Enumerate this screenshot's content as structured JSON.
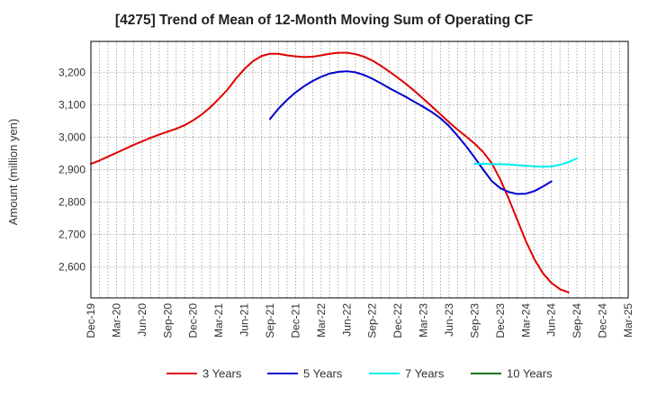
{
  "chart_data": {
    "type": "line",
    "title": "[4275]  Trend of Mean of 12-Month Moving Sum of Operating CF",
    "xlabel": "",
    "ylabel": "Amount (million yen)",
    "ylim": [
      2505,
      3295
    ],
    "yticks": [
      2600,
      2700,
      2800,
      2900,
      3000,
      3100,
      3200
    ],
    "ytick_labels": [
      "2,600",
      "2,700",
      "2,800",
      "2,900",
      "3,000",
      "3,100",
      "3,200"
    ],
    "x_start": "Dec-19",
    "x_months": 63,
    "xtick_labels": [
      "Dec-19",
      "Mar-20",
      "Jun-20",
      "Sep-20",
      "Dec-20",
      "Mar-21",
      "Jun-21",
      "Sep-21",
      "Dec-21",
      "Mar-22",
      "Jun-22",
      "Sep-22",
      "Dec-22",
      "Mar-23",
      "Jun-23",
      "Sep-23",
      "Dec-23",
      "Mar-24",
      "Jun-24",
      "Sep-24",
      "Dec-24",
      "Mar-25"
    ],
    "grid": true,
    "legend_position": "bottom",
    "series": [
      {
        "name": "3 Years",
        "color": "#e00000",
        "start_index": 0,
        "values": [
          2918,
          2928,
          2940,
          2952,
          2964,
          2976,
          2987,
          2998,
          3008,
          3017,
          3026,
          3037,
          3052,
          3070,
          3092,
          3118,
          3146,
          3180,
          3210,
          3234,
          3250,
          3257,
          3257,
          3252,
          3249,
          3247,
          3248,
          3252,
          3257,
          3260,
          3260,
          3256,
          3248,
          3236,
          3220,
          3202,
          3183,
          3163,
          3141,
          3118,
          3094,
          3070,
          3046,
          3023,
          3002,
          2980,
          2954,
          2920,
          2870,
          2810,
          2745,
          2680,
          2624,
          2581,
          2551,
          2532,
          2522
        ]
      },
      {
        "name": "5 Years",
        "color": "#0000cc",
        "start_index": 21,
        "values": [
          3056,
          3088,
          3115,
          3138,
          3157,
          3173,
          3186,
          3196,
          3201,
          3203,
          3200,
          3192,
          3180,
          3166,
          3151,
          3137,
          3123,
          3108,
          3093,
          3077,
          3058,
          3034,
          3004,
          2972,
          2937,
          2900,
          2865,
          2843,
          2831,
          2825,
          2826,
          2834,
          2848,
          2864
        ]
      },
      {
        "name": "7 Years",
        "color": "#00eeee",
        "start_index": 45,
        "values": [
          2918,
          2918,
          2917,
          2917,
          2916,
          2914,
          2912,
          2910,
          2909,
          2910,
          2915,
          2923,
          2935
        ]
      },
      {
        "name": "10 Years",
        "color": "#007700",
        "start_index": 0,
        "values": []
      }
    ]
  }
}
